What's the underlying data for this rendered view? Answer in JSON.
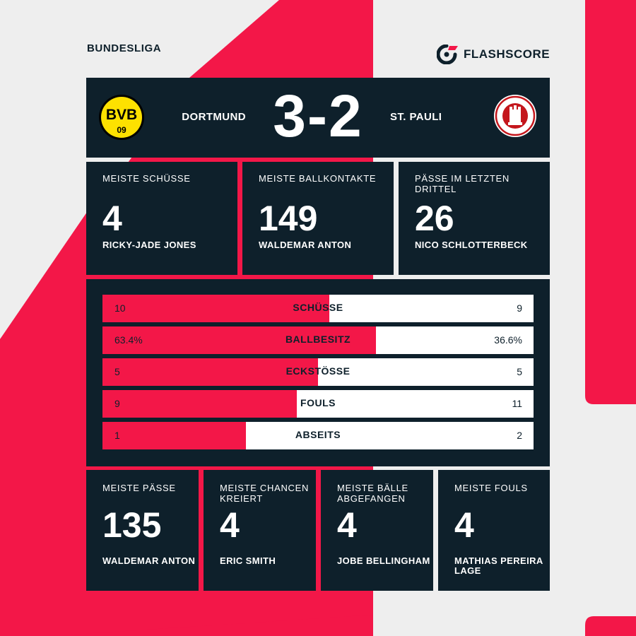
{
  "colors": {
    "background": "#eeeeee",
    "panel": "#0e202b",
    "accent": "#f31748",
    "bar_track": "#ffffff"
  },
  "league": "BUNDESLIGA",
  "brand": {
    "name": "FLASHSCORE",
    "icon": "flashscore-logo-icon"
  },
  "match": {
    "home": {
      "name": "DORTMUND",
      "logo_icon": "bvb-crest-icon"
    },
    "away": {
      "name": "ST. PAULI",
      "logo_icon": "st-pauli-crest-icon"
    },
    "score": "3-2"
  },
  "top_cards": [
    {
      "label": "MEISTE SCHÜSSE",
      "value": "4",
      "player": "RICKY-JADE JONES"
    },
    {
      "label": "MEISTE BALLKONTAKTE",
      "value": "149",
      "player": "WALDEMAR ANTON"
    },
    {
      "label": "PÄSSE IM LETZTEN DRITTEL",
      "value": "26",
      "player": "NICO SCHLOTTERBECK"
    }
  ],
  "comparison": [
    {
      "label": "SCHÜSSE",
      "home": "10",
      "away": "9",
      "home_share": 0.526
    },
    {
      "label": "BALLBESITZ",
      "home": "63.4%",
      "away": "36.6%",
      "home_share": 0.634
    },
    {
      "label": "ECKSTÖSSE",
      "home": "5",
      "away": "5",
      "home_share": 0.5
    },
    {
      "label": "FOULS",
      "home": "9",
      "away": "11",
      "home_share": 0.45
    },
    {
      "label": "ABSEITS",
      "home": "1",
      "away": "2",
      "home_share": 0.333
    }
  ],
  "bottom_cards": [
    {
      "label": "MEISTE PÄSSE",
      "value": "135",
      "player": "WALDEMAR ANTON"
    },
    {
      "label": "MEISTE CHANCEN KREIERT",
      "value": "4",
      "player": "ERIC SMITH"
    },
    {
      "label": "MEISTE BÄLLE ABGEFANGEN",
      "value": "4",
      "player": "JOBE BELLINGHAM"
    },
    {
      "label": "MEISTE FOULS",
      "value": "4",
      "player": "MATHIAS PEREIRA LAGE"
    }
  ]
}
